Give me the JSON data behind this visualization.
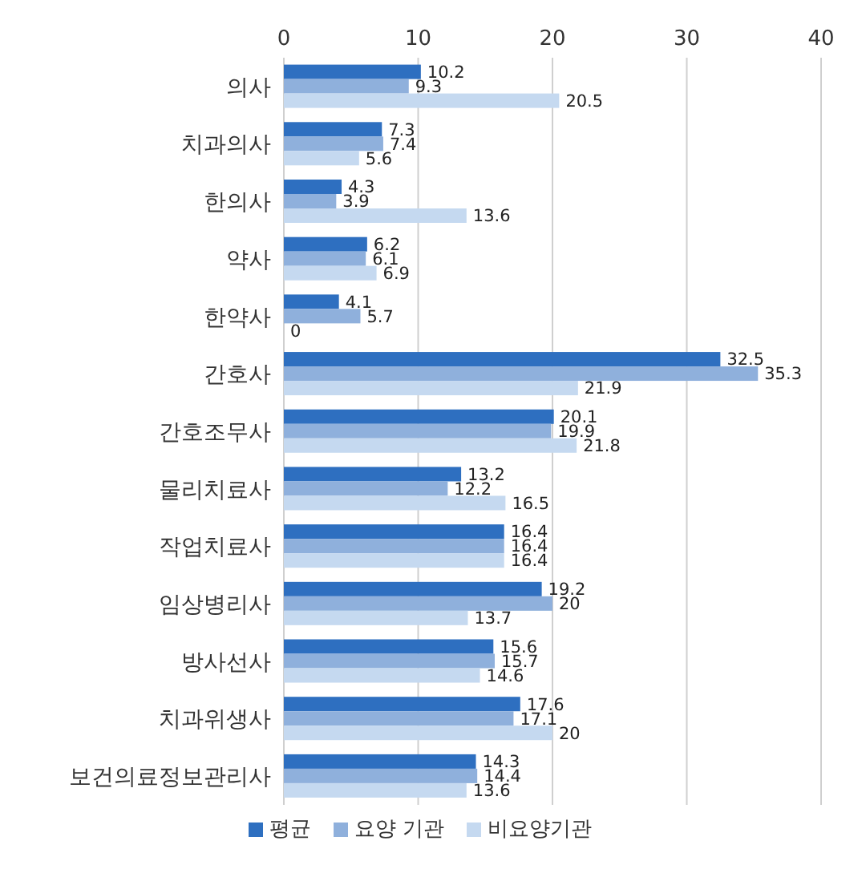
{
  "chart_data": {
    "type": "bar",
    "orientation": "horizontal",
    "categories": [
      "의사",
      "치과의사",
      "한의사",
      "약사",
      "한약사",
      "간호사",
      "간호조무사",
      "물리치료사",
      "작업치료사",
      "임상병리사",
      "방사선사",
      "치과위생사",
      "보건의료정보관리사"
    ],
    "series": [
      {
        "name": "평균",
        "color": "#2e6fc0",
        "values": [
          10.2,
          7.3,
          4.3,
          6.2,
          4.1,
          32.5,
          20.1,
          13.2,
          16.4,
          19.2,
          15.6,
          17.6,
          14.3
        ]
      },
      {
        "name": "요양 기관",
        "color": "#8fb0dc",
        "values": [
          9.3,
          7.4,
          3.9,
          6.1,
          5.7,
          35.3,
          19.9,
          12.2,
          16.4,
          20,
          15.7,
          17.1,
          14.4
        ]
      },
      {
        "name": "비요양기관",
        "color": "#c5d9f0",
        "values": [
          20.5,
          5.6,
          13.6,
          6.9,
          0,
          21.9,
          21.8,
          16.5,
          16.4,
          13.7,
          14.6,
          20,
          13.6
        ]
      }
    ],
    "xlim": [
      0,
      40
    ],
    "xticks": [
      0,
      10,
      20,
      30,
      40
    ],
    "grid": "x",
    "legend": "bottom",
    "data_labels": true
  }
}
